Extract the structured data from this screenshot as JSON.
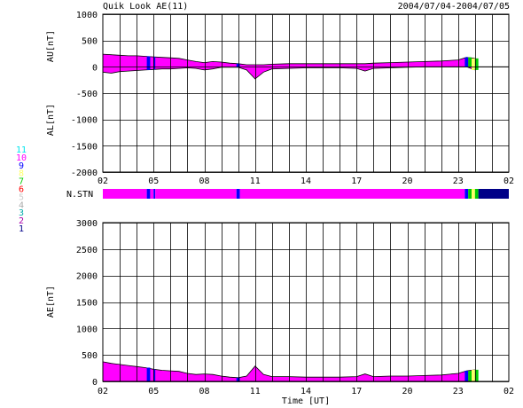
{
  "chart_data": [
    {
      "type": "area",
      "panel": "AU/AL",
      "title": "Quik Look AE(11)",
      "date_range": "2004/07/04-2004/07/05",
      "upper_label": "AU[nT]",
      "lower_label": "AL[nT]",
      "ylim": [
        -2000,
        1000
      ],
      "y_ticks": [
        "1000",
        "500",
        "0",
        "-500",
        "-1000",
        "-1500",
        "-2000"
      ],
      "x_ticks": [
        "02",
        "05",
        "08",
        "11",
        "14",
        "17",
        "20",
        "23",
        "02"
      ],
      "x_hours": [
        2,
        26
      ],
      "grid": true,
      "au_series": {
        "x": [
          2.0,
          2.5,
          3.0,
          3.5,
          4.0,
          4.5,
          5.0,
          5.5,
          6.0,
          6.5,
          7.0,
          7.5,
          8.0,
          8.5,
          9.0,
          9.5,
          10.0,
          10.5,
          11.0,
          11.5,
          12.0,
          13.0,
          14.0,
          15.0,
          16.0,
          17.0,
          17.5,
          18.0,
          19.0,
          20.0,
          21.0,
          22.0,
          23.0,
          23.5,
          24.0
        ],
        "values": [
          240,
          230,
          220,
          210,
          210,
          200,
          190,
          180,
          170,
          160,
          130,
          100,
          80,
          100,
          90,
          70,
          60,
          40,
          40,
          40,
          50,
          60,
          60,
          60,
          60,
          60,
          60,
          70,
          80,
          90,
          100,
          110,
          130,
          180,
          160
        ]
      },
      "al_series": {
        "x": [
          2.0,
          2.5,
          3.0,
          3.5,
          4.0,
          4.5,
          5.0,
          5.5,
          6.0,
          6.5,
          7.0,
          7.5,
          8.0,
          8.5,
          9.0,
          9.5,
          10.0,
          10.5,
          11.0,
          11.5,
          12.0,
          13.0,
          14.0,
          15.0,
          16.0,
          17.0,
          17.5,
          18.0,
          19.0,
          20.0,
          21.0,
          22.0,
          23.0,
          23.5,
          24.0
        ],
        "values": [
          -100,
          -120,
          -90,
          -80,
          -70,
          -60,
          -50,
          -40,
          -40,
          -30,
          -20,
          -30,
          -60,
          -40,
          -10,
          -10,
          -10,
          -60,
          -230,
          -100,
          -40,
          -30,
          -20,
          -20,
          -20,
          -30,
          -80,
          -30,
          -20,
          -10,
          0,
          0,
          0,
          0,
          -60
        ]
      }
    },
    {
      "type": "area",
      "panel": "AE",
      "ylabel": "AE[nT]",
      "xlabel": "Time [UT]",
      "ylim": [
        0,
        3000
      ],
      "y_ticks": [
        "3000",
        "2500",
        "2000",
        "1500",
        "1000",
        "500",
        "0"
      ],
      "x_ticks": [
        "02",
        "05",
        "08",
        "11",
        "14",
        "17",
        "20",
        "23",
        "02"
      ],
      "x_hours": [
        2,
        26
      ],
      "grid": true,
      "series": {
        "x": [
          2.0,
          2.5,
          3.0,
          3.5,
          4.0,
          4.5,
          5.0,
          5.5,
          6.0,
          6.5,
          7.0,
          7.5,
          8.0,
          8.5,
          9.0,
          9.5,
          10.0,
          10.5,
          11.0,
          11.5,
          12.0,
          13.0,
          14.0,
          15.0,
          16.0,
          17.0,
          17.5,
          18.0,
          19.0,
          20.0,
          21.0,
          22.0,
          23.0,
          23.5,
          24.0
        ],
        "values": [
          370,
          340,
          320,
          300,
          280,
          260,
          230,
          210,
          200,
          190,
          150,
          130,
          140,
          130,
          100,
          80,
          70,
          100,
          290,
          130,
          90,
          90,
          80,
          80,
          80,
          90,
          140,
          90,
          100,
          100,
          110,
          120,
          150,
          200,
          220
        ]
      }
    }
  ],
  "station_strip": {
    "label": "N.STN",
    "segments": [
      {
        "from": 2.0,
        "to": 4.6,
        "count": 10
      },
      {
        "from": 4.6,
        "to": 4.8,
        "count": 9
      },
      {
        "from": 4.8,
        "to": 5.0,
        "count": 10
      },
      {
        "from": 5.0,
        "to": 5.1,
        "count": 9
      },
      {
        "from": 5.1,
        "to": 9.9,
        "count": 10
      },
      {
        "from": 9.9,
        "to": 10.1,
        "count": 9
      },
      {
        "from": 10.1,
        "to": 23.4,
        "count": 10
      },
      {
        "from": 23.4,
        "to": 23.6,
        "count": 9
      },
      {
        "from": 23.6,
        "to": 23.8,
        "count": 7
      },
      {
        "from": 23.8,
        "to": 24.0,
        "count": 8
      },
      {
        "from": 24.0,
        "to": 24.2,
        "count": 7
      },
      {
        "from": 24.2,
        "to": 26.0,
        "count": 1
      }
    ]
  },
  "station_legend": [
    {
      "label": "11",
      "color": "#00e5ee"
    },
    {
      "label": "10",
      "color": "#ff00ff"
    },
    {
      "label": "9",
      "color": "#0000ff"
    },
    {
      "label": "8",
      "color": "#ffff66"
    },
    {
      "label": "7",
      "color": "#00cc00"
    },
    {
      "label": "6",
      "color": "#ff0000"
    },
    {
      "label": "5",
      "color": "#cccccc"
    },
    {
      "label": "4",
      "color": "#aaaaaa"
    },
    {
      "label": "3",
      "color": "#00aaaa"
    },
    {
      "label": "2",
      "color": "#aa00aa"
    },
    {
      "label": "1",
      "color": "#000088"
    }
  ],
  "colors": {
    "fill": "#ff00ff",
    "line": "#000000",
    "grid": "#000000"
  }
}
